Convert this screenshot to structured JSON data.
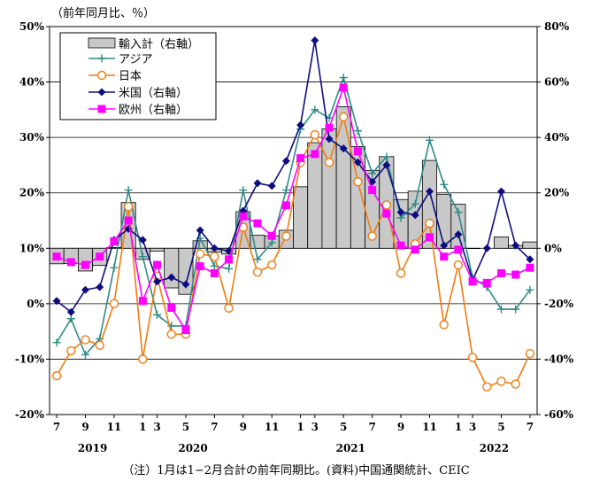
{
  "chart_data": {
    "type": "bar",
    "unit_label": "（前年同月比、％）",
    "note": "（注）1月は1−2月合計の前年同期比。(資料)中国通関統計、CEIC",
    "x_tick_labels": [
      "7",
      "9",
      "11",
      "1",
      "3",
      "5",
      "7",
      "9",
      "11",
      "1",
      "3",
      "5",
      "7",
      "9",
      "11",
      "1",
      "3",
      "5",
      "7"
    ],
    "year_labels": [
      "2019",
      "2020",
      "2021",
      "2022"
    ],
    "y_left": {
      "min": -20,
      "max": 50,
      "step": 10,
      "suffix": "%"
    },
    "y_right": {
      "min": -60,
      "max": 80,
      "step": 20,
      "suffix": "%"
    },
    "months": [
      "2019-07",
      "2019-08",
      "2019-09",
      "2019-10",
      "2019-11",
      "2019-12",
      "2020-01",
      "2020-03",
      "2020-04",
      "2020-05",
      "2020-06",
      "2020-07",
      "2020-08",
      "2020-09",
      "2020-10",
      "2020-11",
      "2020-12",
      "2021-01",
      "2021-03",
      "2021-04",
      "2021-05",
      "2021-06",
      "2021-07",
      "2021-08",
      "2021-09",
      "2021-10",
      "2021-11",
      "2021-12",
      "2022-01",
      "2022-03",
      "2022-04",
      "2022-05",
      "2022-06",
      "2022-07"
    ],
    "series": [
      {
        "name": "輸入計（右軸）",
        "kind": "bar",
        "axis": "right",
        "color": "#c8c8c8",
        "values": [
          -5.6,
          -5.5,
          -8.2,
          -6.2,
          0.3,
          16.5,
          -4,
          -1,
          -14.3,
          -16.6,
          2.7,
          -1.4,
          -2.1,
          13.2,
          4.7,
          4.5,
          6.5,
          22.2,
          38.1,
          43.1,
          51.1,
          36.7,
          28.1,
          33.1,
          17.6,
          20.6,
          31.7,
          19.5,
          15.9,
          -0.1,
          0,
          4.1,
          1,
          2.3
        ]
      },
      {
        "name": "アジア",
        "kind": "line",
        "axis": "left",
        "color": "#2e8b87",
        "marker": "plus",
        "values": [
          -7,
          -2.7,
          -9.2,
          -6.3,
          6.5,
          20.5,
          8.5,
          -2,
          -4,
          -4,
          11.8,
          6.8,
          6.3,
          20.5,
          8,
          11,
          20.5,
          31.5,
          35,
          33.5,
          40.8,
          31.2,
          23.5,
          26.5,
          15.5,
          18,
          29.5,
          21.5,
          16.5,
          4.7,
          3,
          -1,
          -1,
          2.5
        ]
      },
      {
        "name": "日本",
        "kind": "line",
        "axis": "left",
        "color": "#f07c0f",
        "marker": "circle",
        "values": [
          -13,
          -8.5,
          -6.5,
          -7.5,
          0,
          17.5,
          -10,
          5,
          -5.5,
          -5.5,
          9,
          8.5,
          -0.8,
          13.8,
          5.7,
          7,
          12.2,
          25.5,
          30.5,
          25.5,
          33.7,
          22,
          12.2,
          17.8,
          5.5,
          10.8,
          14.5,
          -3.8,
          7,
          -9.7,
          -15,
          -14,
          -14.5,
          -9
        ]
      },
      {
        "name": "米国（右軸）",
        "kind": "line",
        "axis": "right",
        "color": "#0d0d80",
        "marker": "diamond",
        "values": [
          -19,
          -23,
          -15,
          -14,
          3,
          7,
          3,
          -12,
          -10.5,
          -13,
          6.5,
          0,
          -1,
          13.5,
          23.5,
          22.5,
          31.5,
          44.5,
          75,
          39.5,
          36,
          31,
          24,
          30,
          13,
          12,
          20.5,
          1,
          5,
          -11.5,
          0,
          20.5,
          1,
          -4
        ]
      },
      {
        "name": "欧州（右軸）",
        "kind": "line",
        "axis": "right",
        "color": "#ff00ff",
        "marker": "square",
        "values": [
          -3,
          -5,
          -6,
          -3,
          2.5,
          10,
          -19,
          -6,
          -21.5,
          -29.5,
          -6.5,
          -9,
          -4,
          11.5,
          9,
          4.5,
          15.5,
          32.5,
          34,
          43.5,
          58,
          35,
          21,
          12.5,
          1,
          -0.5,
          4,
          -3,
          -0.5,
          -12,
          -12.5,
          -9,
          -9.5,
          -7
        ]
      }
    ]
  }
}
